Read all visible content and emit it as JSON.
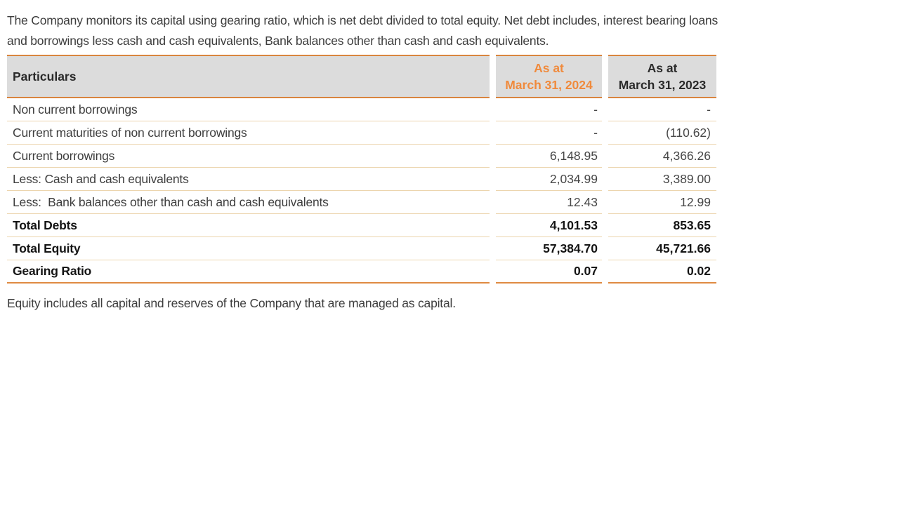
{
  "document": {
    "intro": "The Company monitors its capital using gearing ratio, which is net debt divided to total equity. Net debt includes, interest bearing loans and borrowings less cash and cash equivalents, Bank balances other than cash and cash equivalents.",
    "footnote": "Equity includes all capital and reserves of the Company that are managed as capital."
  },
  "table": {
    "header": {
      "particulars": "Particulars",
      "col_2024": {
        "line1": "As at",
        "line2": "March 31, 2024"
      },
      "col_2023": {
        "line1": "As at",
        "line2": "March 31, 2023"
      }
    },
    "rows": [
      {
        "label": "Non current borrowings",
        "fy2024": "-",
        "fy2023": "-"
      },
      {
        "label": "Current maturities of non current borrowings",
        "fy2024": "-",
        "fy2023": "(110.62)"
      },
      {
        "label": "Current borrowings",
        "fy2024": "6,148.95",
        "fy2023": "4,366.26"
      },
      {
        "label": "Less: Cash and cash equivalents",
        "fy2024": "2,034.99",
        "fy2023": "3,389.00"
      },
      {
        "label": "Less:  Bank balances other than cash and cash equivalents",
        "fy2024": "12.43",
        "fy2023": "12.99"
      },
      {
        "label": "Total Debts",
        "fy2024": "4,101.53",
        "fy2023": "853.65"
      },
      {
        "label": "Total Equity",
        "fy2024": "57,384.70",
        "fy2023": "45,721.66"
      },
      {
        "label": "Gearing Ratio",
        "fy2024": "0.07",
        "fy2023": "0.02"
      }
    ]
  },
  "colors": {
    "accent_orange_text": "#f08a3c",
    "border_orange": "#d9853e",
    "row_separator_tan": "#ecd5ae",
    "header_gray_bg": "#dcdcdc",
    "body_text": "#3d3d3d"
  }
}
